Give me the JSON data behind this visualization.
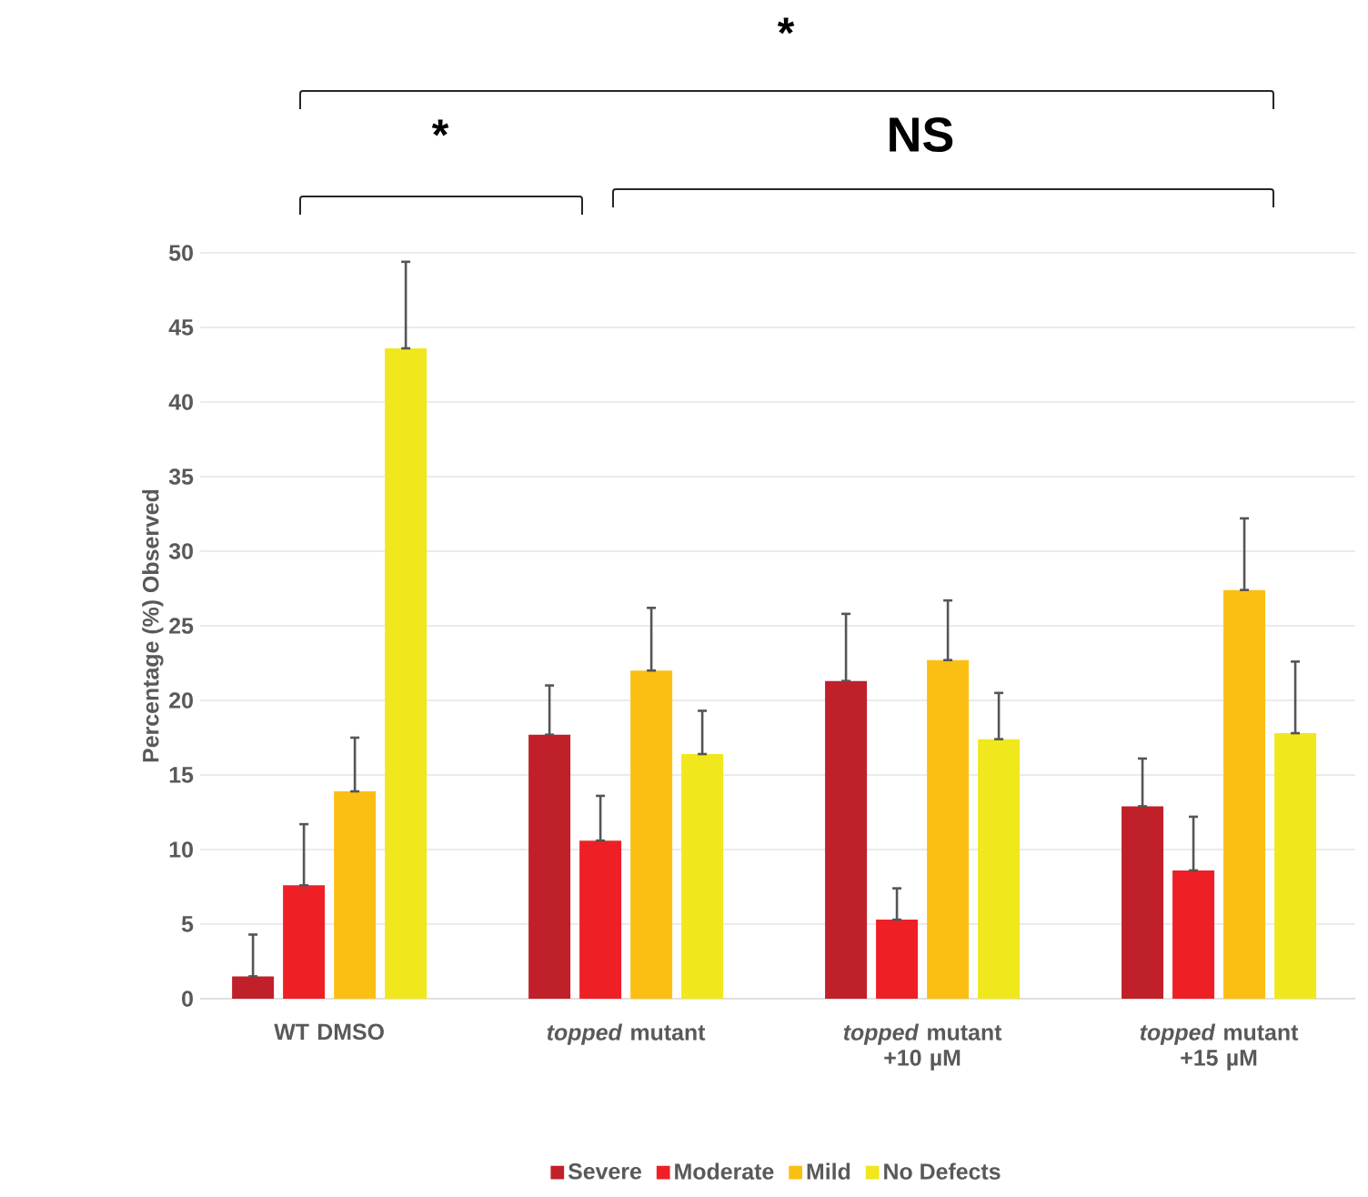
{
  "chart_data": {
    "type": "bar",
    "categories": [
      "WT DMSO",
      "*topped* mutant",
      "*topped* mutant +10 µM",
      "*topped* mutant +15 µM"
    ],
    "ylabel": "Percentage (%) Observed",
    "series": [
      {
        "name": "Severe",
        "color": "#c0202a",
        "values": [
          1.5,
          17.7,
          21.3,
          12.9
        ],
        "errors": [
          [
            1.5,
            4.3
          ],
          [
            17.7,
            21.0
          ],
          [
            21.3,
            25.8
          ],
          [
            12.9,
            16.1
          ]
        ]
      },
      {
        "name": "Moderate",
        "color": "#ee2026",
        "values": [
          7.6,
          10.6,
          5.3,
          8.6
        ],
        "errors": [
          [
            7.6,
            11.7
          ],
          [
            10.6,
            13.6
          ],
          [
            5.3,
            7.4
          ],
          [
            8.6,
            12.2
          ]
        ]
      },
      {
        "name": "Mild",
        "color": "#fbbf14",
        "values": [
          13.9,
          22.0,
          22.7,
          27.4
        ],
        "errors": [
          [
            13.9,
            17.5
          ],
          [
            22.0,
            26.2
          ],
          [
            22.7,
            26.7
          ],
          [
            27.4,
            32.2
          ]
        ]
      },
      {
        "name": "No Defects",
        "color": "#f0e81c",
        "values": [
          43.6,
          16.4,
          17.4,
          17.8
        ],
        "errors": [
          [
            43.6,
            49.4
          ],
          [
            16.4,
            19.3
          ],
          [
            17.4,
            20.5
          ],
          [
            17.8,
            22.6
          ]
        ]
      }
    ],
    "ylim": [
      0,
      50
    ],
    "yticks": [
      0,
      5,
      10,
      15,
      20,
      25,
      30,
      35,
      40,
      45,
      50
    ],
    "grid": "y",
    "legend": "bottom",
    "annotations": [
      "*",
      "*",
      "NS"
    ]
  }
}
